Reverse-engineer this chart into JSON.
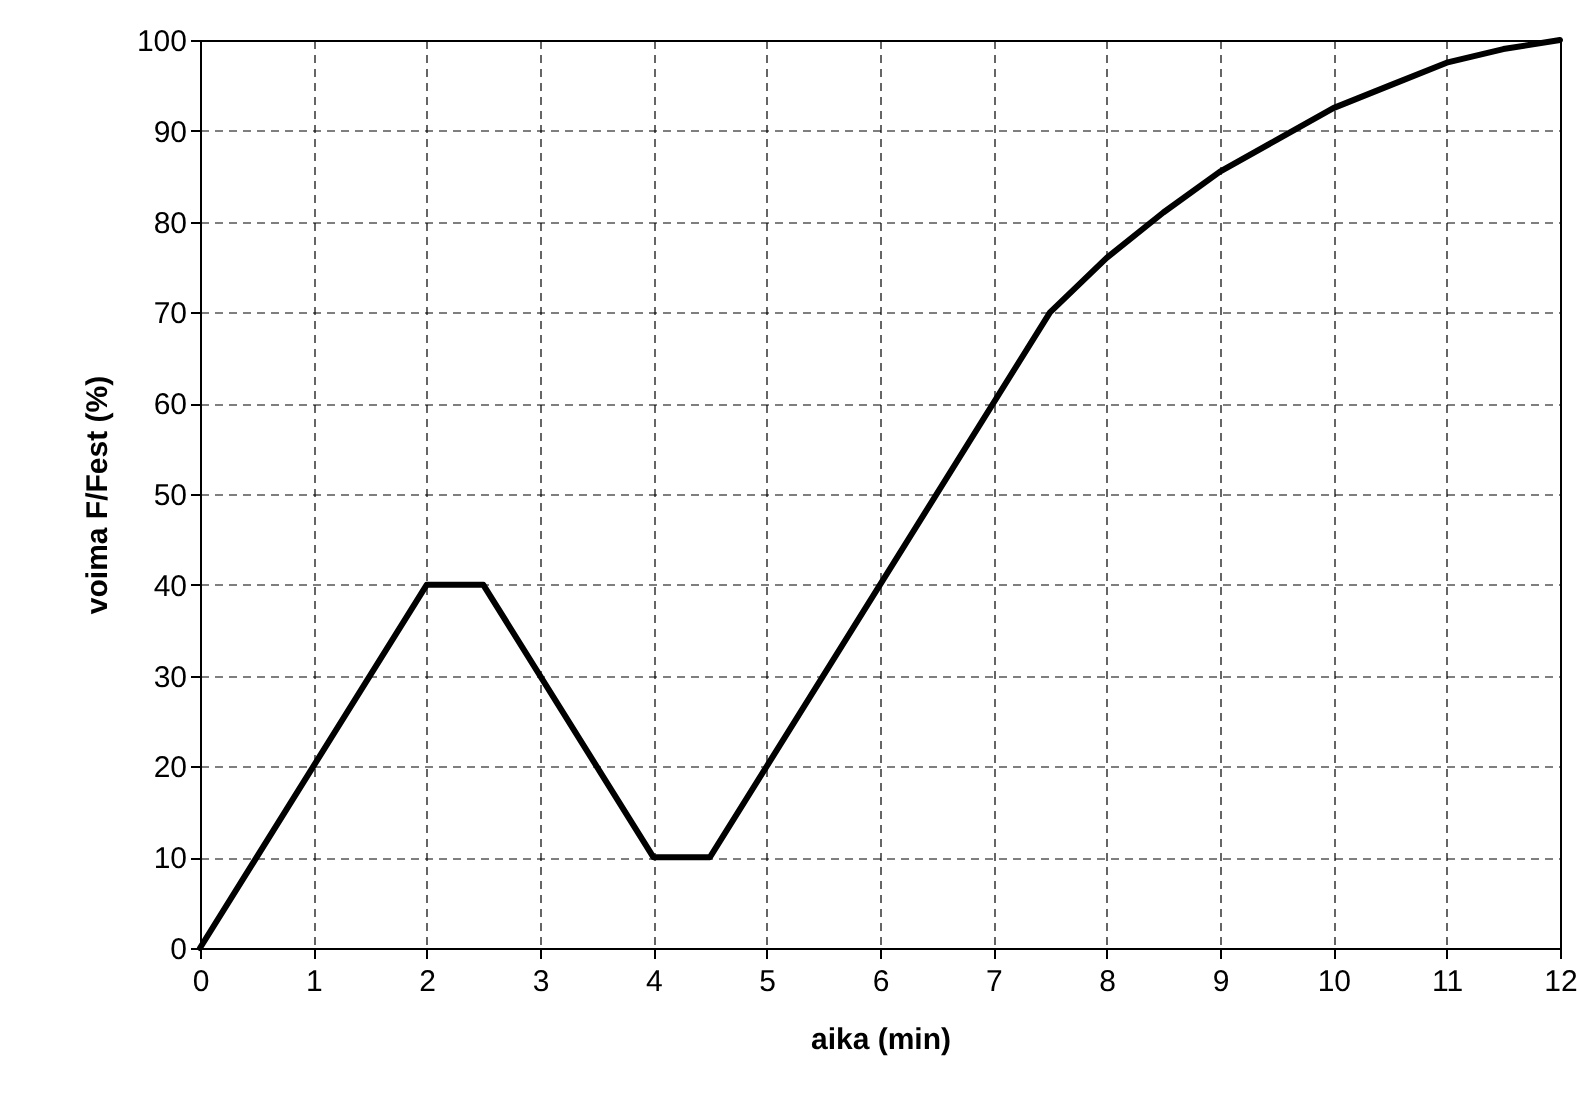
{
  "chart_data": {
    "type": "line",
    "xlabel": "aika (min)",
    "ylabel": "voima F/Fest (%)",
    "x": [
      0,
      2,
      2.5,
      4,
      4.5,
      7.5,
      8,
      8.5,
      9,
      9.5,
      10,
      10.5,
      11,
      11.5,
      12
    ],
    "series": [
      {
        "color": "#000000",
        "values": [
          0,
          40,
          40,
          10,
          10,
          70,
          76,
          81,
          85.5,
          89,
          92.5,
          95,
          97.5,
          99,
          100
        ]
      }
    ],
    "xlim": [
      0,
      12
    ],
    "xticks": [
      0,
      1,
      2,
      3,
      4,
      5,
      6,
      7,
      8,
      9,
      10,
      11,
      12
    ],
    "ylim": [
      0,
      100
    ],
    "yticks": [
      0,
      10,
      20,
      30,
      40,
      50,
      60,
      70,
      80,
      90,
      100
    ],
    "grid": true,
    "marker": "none",
    "line_style": "solid"
  }
}
